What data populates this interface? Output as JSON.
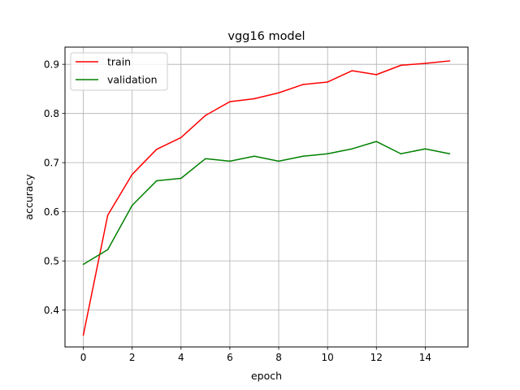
{
  "chart_data": {
    "type": "line",
    "title": "vgg16 model",
    "xlabel": "epoch",
    "ylabel": "accuracy",
    "x": [
      0,
      1,
      2,
      3,
      4,
      5,
      6,
      7,
      8,
      9,
      10,
      11,
      12,
      13,
      14,
      15
    ],
    "xlim": [
      -0.75,
      15.75
    ],
    "ylim": [
      0.325,
      0.935
    ],
    "xticks": [
      0,
      2,
      4,
      6,
      8,
      10,
      12,
      14
    ],
    "yticks": [
      0.4,
      0.5,
      0.6,
      0.7,
      0.8,
      0.9
    ],
    "grid": true,
    "legend_position": "top-left",
    "series": [
      {
        "name": "train",
        "color": "#ff0000",
        "values": [
          0.349,
          0.593,
          0.676,
          0.727,
          0.751,
          0.796,
          0.824,
          0.83,
          0.842,
          0.859,
          0.864,
          0.887,
          0.879,
          0.898,
          0.902,
          0.907
        ]
      },
      {
        "name": "validation",
        "color": "#008000",
        "values": [
          0.493,
          0.523,
          0.613,
          0.663,
          0.668,
          0.708,
          0.703,
          0.713,
          0.703,
          0.713,
          0.718,
          0.728,
          0.743,
          0.718,
          0.728,
          0.718
        ]
      }
    ]
  }
}
